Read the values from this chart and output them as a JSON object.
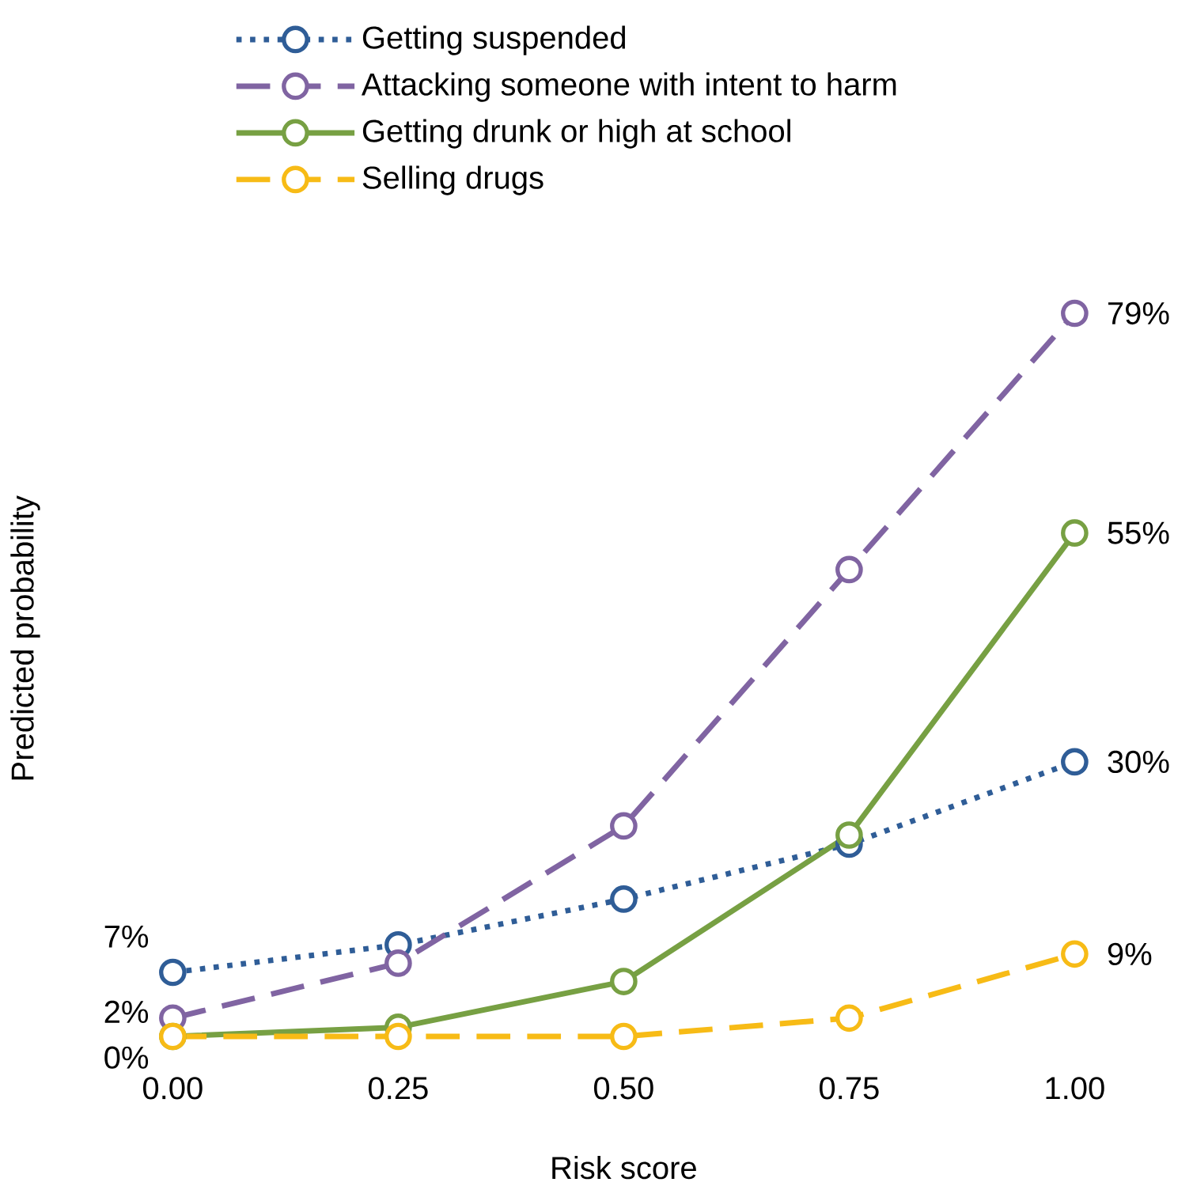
{
  "chart_data": {
    "type": "line",
    "xlabel": "Risk score",
    "ylabel": "Predicted probability",
    "x": [
      0,
      0.25,
      0.5,
      0.75,
      1
    ],
    "xlim": [
      0,
      1
    ],
    "xticks": [
      {
        "value": 0,
        "label": "0.00"
      },
      {
        "value": 0.25,
        "label": "0.25"
      },
      {
        "value": 0.5,
        "label": "0.50"
      },
      {
        "value": 0.75,
        "label": "0.75"
      },
      {
        "value": 1,
        "label": "1.00"
      }
    ],
    "tick_labels": "x",
    "legend": "top",
    "marker": "circle",
    "series": [
      {
        "name": "Getting suspended",
        "color": "#2f5d97",
        "line_style": "dotted",
        "values": [
          7,
          10,
          15,
          21,
          30
        ],
        "value_labels": [
          "7%",
          null,
          null,
          null,
          "30%"
        ]
      },
      {
        "name": "Attacking someone with intent to harm",
        "color": "#8064a2",
        "line_style": "dashed",
        "values": [
          2,
          8,
          23,
          51,
          79
        ],
        "value_labels": [
          "2%",
          null,
          null,
          null,
          "79%"
        ]
      },
      {
        "name": "Getting drunk or high at school",
        "color": "#77a043",
        "line_style": "solid",
        "values": [
          0,
          1,
          6,
          22,
          55
        ],
        "value_labels": [
          null,
          null,
          null,
          null,
          "55%"
        ]
      },
      {
        "name": "Selling drugs",
        "color": "#f7bb16",
        "line_style": "dashed",
        "values": [
          0,
          0,
          0,
          2,
          9
        ],
        "value_labels": [
          "0%",
          null,
          null,
          null,
          "9%"
        ]
      }
    ]
  }
}
